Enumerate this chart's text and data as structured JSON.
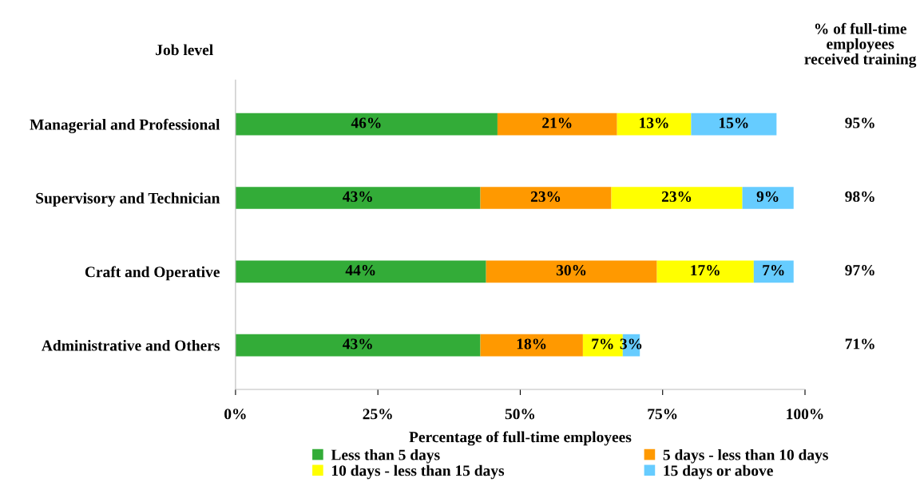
{
  "chart_data": {
    "type": "bar",
    "orientation": "horizontal",
    "stacked": true,
    "categories": [
      "Managerial and Professional",
      "Supervisory and Technician",
      "Craft and Operative",
      "Administrative and Others"
    ],
    "series": [
      {
        "name": "Less than 5 days",
        "color": "#33ac38",
        "values": [
          46,
          43,
          44,
          43
        ],
        "value_labels": [
          "46%",
          "43%",
          "44%",
          "43%"
        ]
      },
      {
        "name": "5 days - less than 10 days",
        "color": "#ff9900",
        "values": [
          21,
          23,
          30,
          18
        ],
        "value_labels": [
          "21%",
          "23%",
          "30%",
          "18%"
        ]
      },
      {
        "name": "10 days - less than 15 days",
        "color": "#ffff00",
        "values": [
          13,
          23,
          17,
          7
        ],
        "value_labels": [
          "13%",
          "23%",
          "17%",
          "7%"
        ]
      },
      {
        "name": "15 days or above",
        "color": "#66ccff",
        "values": [
          15,
          9,
          7,
          3
        ],
        "value_labels": [
          "15%",
          "9%",
          "7%",
          "3%"
        ]
      }
    ],
    "xlim": [
      0,
      100
    ],
    "xticks": [
      {
        "value": 0,
        "label": "0%"
      },
      {
        "value": 25,
        "label": "25%"
      },
      {
        "value": 50,
        "label": "50%"
      },
      {
        "value": 75,
        "label": "75%"
      },
      {
        "value": 100,
        "label": "100%"
      }
    ],
    "xlabel": "Percentage of full-time employees",
    "ylabel": "Job level",
    "annotations": [
      "% of full-time\nemployees\nreceived training",
      "95%",
      "98%",
      "97%",
      "71%"
    ],
    "legend": "bottom",
    "grid": false
  }
}
